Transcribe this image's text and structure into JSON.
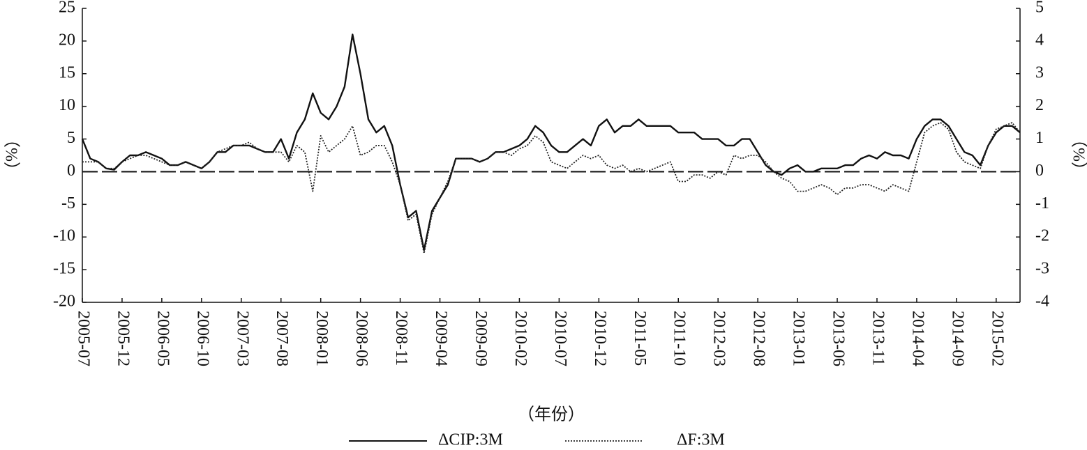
{
  "chart_data": {
    "type": "line",
    "x_label": "（年份）",
    "y_label": "（%）",
    "y2_label": "（%）",
    "x": [
      "2005-07",
      "2005-08",
      "2005-09",
      "2005-10",
      "2005-11",
      "2005-12",
      "2006-01",
      "2006-02",
      "2006-03",
      "2006-04",
      "2006-05",
      "2006-06",
      "2006-07",
      "2006-08",
      "2006-09",
      "2006-10",
      "2006-11",
      "2006-12",
      "2007-01",
      "2007-02",
      "2007-03",
      "2007-04",
      "2007-05",
      "2007-06",
      "2007-07",
      "2007-08",
      "2007-09",
      "2007-10",
      "2007-11",
      "2007-12",
      "2008-01",
      "2008-02",
      "2008-03",
      "2008-04",
      "2008-05",
      "2008-06",
      "2008-07",
      "2008-08",
      "2008-09",
      "2008-10",
      "2008-11",
      "2008-12",
      "2009-01",
      "2009-02",
      "2009-03",
      "2009-04",
      "2009-05",
      "2009-06",
      "2009-07",
      "2009-08",
      "2009-09",
      "2009-10",
      "2009-11",
      "2009-12",
      "2010-01",
      "2010-02",
      "2010-03",
      "2010-04",
      "2010-05",
      "2010-06",
      "2010-07",
      "2010-08",
      "2010-09",
      "2010-10",
      "2010-11",
      "2010-12",
      "2011-01",
      "2011-02",
      "2011-03",
      "2011-04",
      "2011-05",
      "2011-06",
      "2011-07",
      "2011-08",
      "2011-09",
      "2011-10",
      "2011-11",
      "2011-12",
      "2012-01",
      "2012-02",
      "2012-03",
      "2012-04",
      "2012-05",
      "2012-06",
      "2012-07",
      "2012-08",
      "2012-09",
      "2012-10",
      "2012-11",
      "2012-12",
      "2013-01",
      "2013-02",
      "2013-03",
      "2013-04",
      "2013-05",
      "2013-06",
      "2013-07",
      "2013-08",
      "2013-09",
      "2013-10",
      "2013-11",
      "2013-12",
      "2014-01",
      "2014-02",
      "2014-03",
      "2014-04",
      "2014-05",
      "2014-06",
      "2014-07",
      "2014-08",
      "2014-09",
      "2014-10",
      "2014-11",
      "2014-12",
      "2015-01",
      "2015-02",
      "2015-03",
      "2015-04",
      "2015-05"
    ],
    "xlim": [
      "2005-07",
      "2015-05"
    ],
    "xticks": [
      "2005-07",
      "2005-12",
      "2006-05",
      "2006-10",
      "2007-03",
      "2007-08",
      "2008-01",
      "2008-06",
      "2008-11",
      "2009-04",
      "2009-09",
      "2010-02",
      "2010-07",
      "2010-12",
      "2011-05",
      "2011-10",
      "2012-03",
      "2012-08",
      "2013-01",
      "2013-06",
      "2013-11",
      "2014-04",
      "2014-09",
      "2015-02"
    ],
    "ylim": [
      -20,
      25
    ],
    "yticks": [
      -20,
      -15,
      -10,
      -5,
      0,
      5,
      10,
      15,
      20,
      25
    ],
    "y2lim": [
      -4,
      5
    ],
    "y2ticks": [
      -4,
      -3,
      -2,
      -1,
      0,
      1,
      2,
      3,
      4,
      5
    ],
    "reference_line": 0,
    "series": [
      {
        "name": "ΔCIP:3M",
        "color": "#111111",
        "style": "solid",
        "axis": "y",
        "values": [
          5,
          2,
          1.5,
          0.5,
          0.3,
          1.5,
          2.5,
          2.5,
          3,
          2.5,
          2,
          1,
          1,
          1.5,
          1,
          0.5,
          1.5,
          3,
          3,
          4,
          4,
          4,
          3.5,
          3,
          3,
          5,
          2,
          6,
          8,
          12,
          9,
          8,
          10,
          13,
          21,
          15,
          8,
          6,
          7,
          4,
          -2,
          -7,
          -6,
          -12,
          -6,
          -4,
          -2,
          2,
          2,
          2,
          1.5,
          2,
          3,
          3,
          3.5,
          4,
          5,
          7,
          6,
          4,
          3,
          3,
          4,
          5,
          4,
          7,
          8,
          6,
          7,
          7,
          8,
          7,
          7,
          7,
          7,
          6,
          6,
          6,
          5,
          5,
          5,
          4,
          4,
          5,
          5,
          3,
          1,
          0,
          -0.5,
          0.5,
          1,
          0,
          0,
          0.5,
          0.5,
          0.5,
          1,
          1,
          2,
          2.5,
          2,
          3,
          2.5,
          2.5,
          2,
          5,
          7,
          8,
          8,
          7,
          5,
          3,
          2.5,
          1,
          4,
          6,
          7,
          7,
          6
        ]
      },
      {
        "name": "ΔF:3M",
        "color": "#222222",
        "style": "dotted",
        "axis": "y2",
        "values": [
          0.3,
          0.3,
          0.3,
          0.1,
          0.1,
          0.3,
          0.4,
          0.5,
          0.5,
          0.4,
          0.3,
          0.2,
          0.2,
          0.3,
          0.2,
          0.1,
          0.3,
          0.6,
          0.7,
          0.8,
          0.8,
          0.9,
          0.7,
          0.6,
          0.6,
          0.6,
          0.3,
          0.8,
          0.6,
          -0.6,
          1.1,
          0.6,
          0.8,
          1.0,
          1.4,
          0.5,
          0.6,
          0.8,
          0.8,
          0.3,
          -0.4,
          -1.5,
          -1.3,
          -2.5,
          -1.3,
          -0.8,
          -0.3,
          0.4,
          0.4,
          0.4,
          0.3,
          0.4,
          0.6,
          0.6,
          0.5,
          0.7,
          0.8,
          1.1,
          0.9,
          0.3,
          0.2,
          0.1,
          0.3,
          0.5,
          0.4,
          0.5,
          0.2,
          0.1,
          0.2,
          0,
          0.1,
          0,
          0.1,
          0.2,
          0.3,
          -0.3,
          -0.3,
          -0.1,
          -0.1,
          -0.2,
          0,
          -0.1,
          0.5,
          0.4,
          0.5,
          0.5,
          0.3,
          0,
          -0.2,
          -0.3,
          -0.6,
          -0.6,
          -0.5,
          -0.4,
          -0.5,
          -0.7,
          -0.5,
          -0.5,
          -0.4,
          -0.4,
          -0.5,
          -0.6,
          -0.4,
          -0.5,
          -0.6,
          0.3,
          1.2,
          1.4,
          1.5,
          1.3,
          0.6,
          0.3,
          0.2,
          0.1,
          0.8,
          1.3,
          1.4,
          1.5,
          1.2
        ]
      }
    ]
  }
}
